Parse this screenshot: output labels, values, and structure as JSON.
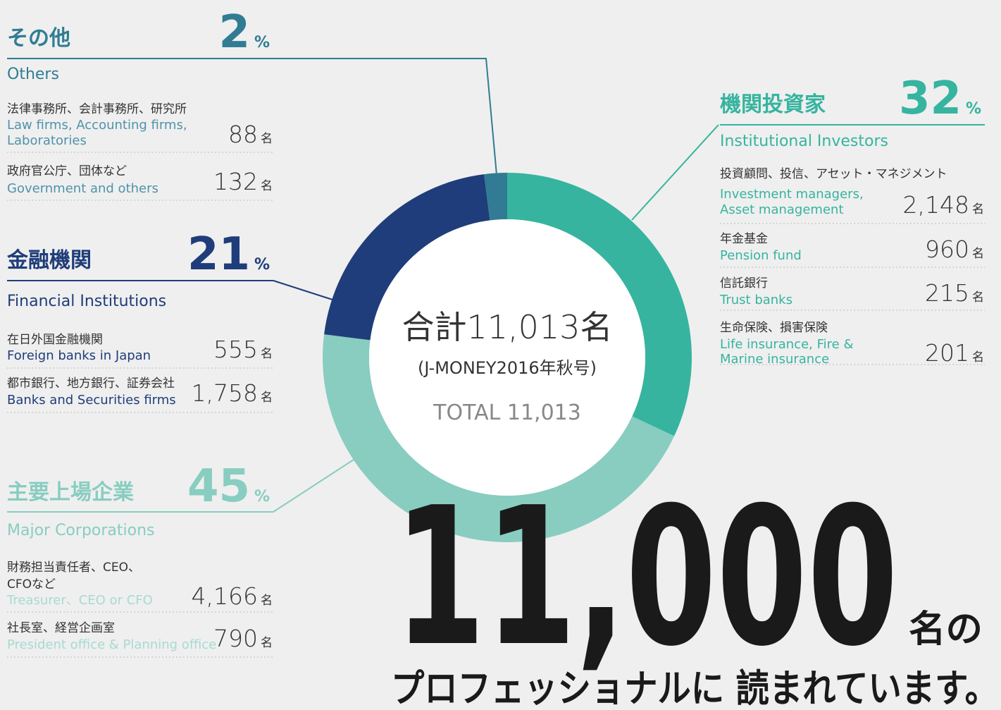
{
  "chart_data": {
    "type": "donut",
    "categories": [
      "機関投資家",
      "主要上場企業",
      "金融機関",
      "その他"
    ],
    "categories_en": [
      "Institutional Investors",
      "Major Corporations",
      "Financial Institutions",
      "Others"
    ],
    "values": [
      32,
      45,
      21,
      2
    ],
    "colors": [
      "#36b49f",
      "#88cdc0",
      "#1f3d7a",
      "#317c94"
    ],
    "percent_unit": "%",
    "count_unit": "名",
    "center": {
      "title": "合計11,013名",
      "subtitle": "(J-MONEY2016年秋号)",
      "total": "TOTAL 11,013"
    },
    "groups": [
      {
        "labels_jp": [
          [
            "投資顧問、投信、アセット・マネジメント"
          ],
          [
            "年金基金"
          ],
          [
            "信託銀行"
          ],
          [
            "生命保険、損害保険"
          ]
        ],
        "labels_en": [
          [
            "Investment managers,",
            "Asset management"
          ],
          [
            "Pension fund"
          ],
          [
            "Trust banks"
          ],
          [
            "Life insurance, Fire &",
            "Marine insurance"
          ]
        ],
        "values": [
          2148,
          960,
          215,
          201
        ],
        "value_labels": [
          "2,148",
          "960",
          "215",
          "201"
        ]
      },
      {
        "labels_jp": [
          [
            "財務担当責任者、CEO、",
            "CFOなど"
          ],
          [
            "社長室、経営企画室"
          ]
        ],
        "labels_en": [
          [
            "Treasurer、CEO or CFO"
          ],
          [
            "President office & Planning office"
          ]
        ],
        "values": [
          4166,
          790
        ],
        "value_labels": [
          "4,166",
          "790"
        ]
      },
      {
        "labels_jp": [
          [
            "在日外国金融機関"
          ],
          [
            "都市銀行、地方銀行、証券会社"
          ]
        ],
        "labels_en": [
          [
            "Foreign banks in Japan"
          ],
          [
            "Banks and Securities firms"
          ]
        ],
        "values": [
          555,
          1758
        ],
        "value_labels": [
          "555",
          "1,758"
        ]
      },
      {
        "labels_jp": [
          [
            "法律事務所、会計事務所、研究所"
          ],
          [
            "政府官公庁、団体など"
          ]
        ],
        "labels_en": [
          [
            "Law firms, Accounting firms,",
            "Laboratories"
          ],
          [
            "Government and others"
          ]
        ],
        "values": [
          88,
          132
        ],
        "value_labels": [
          "88",
          "132"
        ]
      }
    ]
  },
  "headline": {
    "number": "11,000",
    "suffix": "名の",
    "line": "プロフェッショナルに 読まれています。"
  }
}
